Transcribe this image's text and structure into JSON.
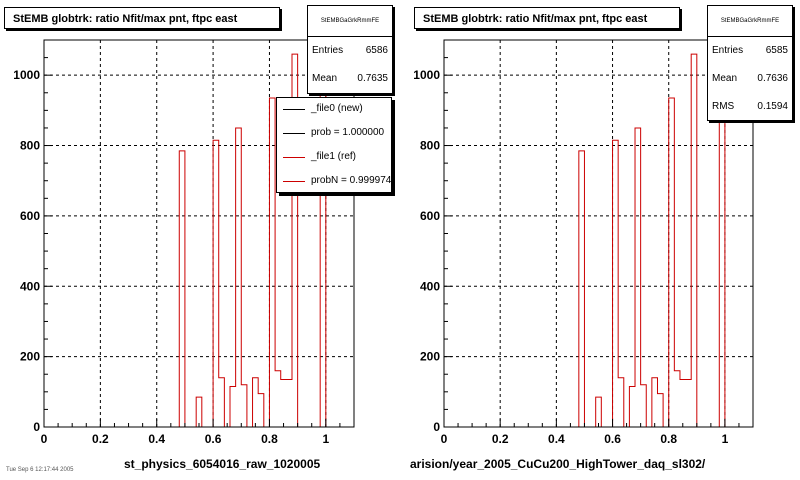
{
  "colors": {
    "ref": "#cc0000",
    "new": "#000000",
    "frame": "#000000",
    "grid": "#000000"
  },
  "pads": [
    {
      "title": "StEMB globtrk: ratio Nfit/max pnt, ftpc east",
      "stats": {
        "name": "StEMBGaGrkRmmFE",
        "entries_label": "Entries",
        "entries": "6586",
        "mean_label": "Mean",
        "mean": "0.7635"
      },
      "xname": "st_physics_6054016_raw_1020005"
    },
    {
      "title": "StEMB globtrk: ratio Nfit/max pnt, ftpc east",
      "stats": {
        "name": "StEMBGaGrkRmmFE",
        "entries_label": "Entries",
        "entries": "6585",
        "mean_label": "Mean",
        "mean": "0.7636",
        "rms_label": "RMS",
        "rms": "0.1594"
      },
      "xname": "arision/year_2005_CuCu200_HighTower_daq_sl302/"
    }
  ],
  "legend": [
    {
      "text": "_file0 (new)",
      "color": "#000000"
    },
    {
      "text": "prob = 1.000000",
      "color": "#000000"
    },
    {
      "text": "_file1 (ref)",
      "color": "#cc0000"
    },
    {
      "text": "probN = 0.999974",
      "color": "#cc0000"
    }
  ],
  "footer": "Tue Sep  6 12:17:44 2005",
  "chart_data": {
    "type": "histogram",
    "xlim": [
      0,
      1.1
    ],
    "ylim": [
      0,
      1100
    ],
    "xticks": [
      "0",
      "0.2",
      "0.4",
      "0.6",
      "0.8",
      "1"
    ],
    "yticks": [
      "0",
      "200",
      "400",
      "600",
      "800",
      "1000"
    ],
    "grid": true,
    "bin_width": 0.02,
    "x": [
      0.49,
      0.51,
      0.53,
      0.55,
      0.57,
      0.59,
      0.61,
      0.63,
      0.65,
      0.67,
      0.69,
      0.71,
      0.73,
      0.75,
      0.77,
      0.79,
      0.81,
      0.83,
      0.85,
      0.87,
      0.89,
      0.91,
      0.93,
      0.95,
      0.97,
      0.99,
      1.01
    ],
    "series": [
      {
        "name": "_file1 (ref)",
        "values": [
          785,
          0,
          0,
          85,
          0,
          0,
          815,
          140,
          0,
          115,
          850,
          120,
          0,
          140,
          95,
          0,
          935,
          160,
          135,
          135,
          1060,
          0,
          0,
          0,
          0,
          990,
          0
        ]
      }
    ]
  }
}
